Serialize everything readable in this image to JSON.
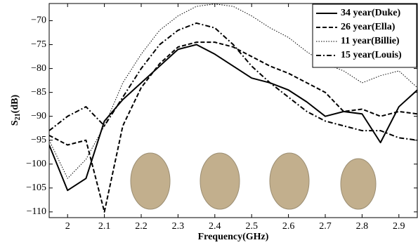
{
  "chart_data": {
    "type": "line",
    "x_label": "Frequency(GHz)",
    "y_label_parts": [
      "S",
      "21",
      "(dB)"
    ],
    "x": [
      1.95,
      2.0,
      2.05,
      2.1,
      2.15,
      2.2,
      2.25,
      2.3,
      2.35,
      2.4,
      2.45,
      2.5,
      2.55,
      2.6,
      2.65,
      2.7,
      2.75,
      2.8,
      2.85,
      2.9,
      2.95
    ],
    "series": [
      {
        "name": "34 year(Duke)",
        "color": "#000000",
        "style": "solid",
        "values": [
          -96,
          -105.5,
          -103,
          -91,
          -86.5,
          -83,
          -79.5,
          -76,
          -75,
          -77,
          -79.5,
          -82,
          -83,
          -84.5,
          -87,
          -90,
          -89,
          -89.5,
          -95.5,
          -88,
          -84.5
        ]
      },
      {
        "name": "26 year(Ella)",
        "color": "#000000",
        "style": "dashed",
        "values": [
          -94,
          -96,
          -95,
          -110,
          -92,
          -84,
          -79,
          -75.5,
          -74.5,
          -74.5,
          -75.5,
          -77.5,
          -79.5,
          -81,
          -83,
          -85,
          -89,
          -88.5,
          -90,
          -89,
          -89.5
        ]
      },
      {
        "name": "11 year(Billie)",
        "color": "#000000",
        "style": "dotted",
        "values": [
          -95,
          -103,
          -99,
          -92,
          -83,
          -77,
          -72,
          -69,
          -67,
          -66.5,
          -67,
          -69,
          -71.5,
          -73.5,
          -76.5,
          -79,
          -80.5,
          -83,
          -81.5,
          -80.5,
          -84
        ]
      },
      {
        "name": "15 year(Louis)",
        "color": "#000000",
        "style": "dashdot",
        "values": [
          -93,
          -90,
          -88,
          -92,
          -86,
          -80,
          -75,
          -72,
          -70.5,
          -71.5,
          -75,
          -79.5,
          -83,
          -86,
          -89,
          -91,
          -92,
          -93,
          -93,
          -94.5,
          -95
        ]
      }
    ],
    "xlim": [
      1.95,
      2.95
    ],
    "ylim": [
      -111.2,
      -66.4
    ],
    "xticks": [
      2,
      2.1,
      2.2,
      2.3,
      2.4,
      2.5,
      2.6,
      2.7,
      2.8,
      2.9
    ],
    "yticks": [
      {
        "value": -110,
        "label": "−110"
      },
      {
        "value": -105,
        "label": "−105"
      },
      {
        "value": -100,
        "label": "−100"
      },
      {
        "value": -95,
        "label": "−95"
      },
      {
        "value": -90,
        "label": "−90"
      },
      {
        "value": -85,
        "label": "−85"
      },
      {
        "value": -80,
        "label": "−80"
      },
      {
        "value": -75,
        "label": "−75"
      },
      {
        "value": -70,
        "label": "−70"
      }
    ],
    "grid": false,
    "legend": "upper right"
  }
}
